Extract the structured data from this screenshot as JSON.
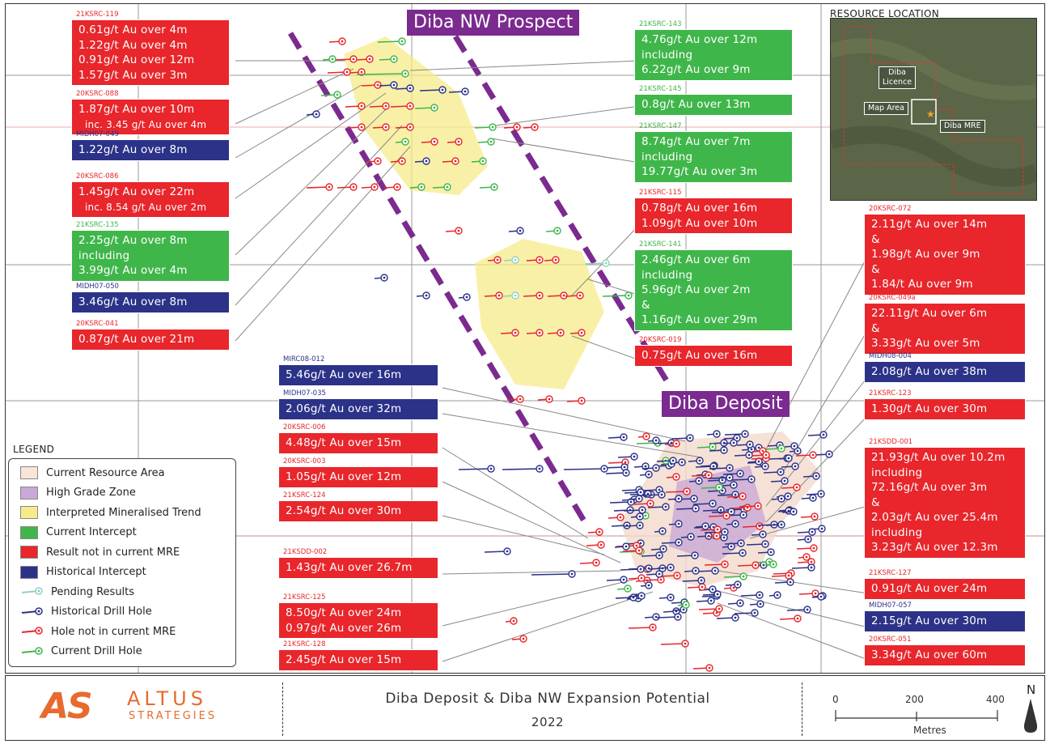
{
  "titles": {
    "diba_nw": "Diba NW Prospect",
    "diba_deposit": "Diba Deposit"
  },
  "inset": {
    "title": "RESOURCE LOCATION",
    "label_licence_1": "Diba",
    "label_licence_2": "Licence",
    "label_map_area": "Map Area",
    "label_mre": "Diba MRE"
  },
  "left_callouts": [
    {
      "id": "21KSRC-119",
      "color": "red",
      "lines": [
        "0.61g/t Au over 4m",
        "1.22g/t Au over 4m",
        "0.91g/t Au over 12m",
        "1.57g/t Au over 3m"
      ]
    },
    {
      "id": "20KSRC-088",
      "color": "red",
      "lines": [
        "1.87g/t Au over 10m",
        "inc. 3.45 g/t Au over 4m"
      ]
    },
    {
      "id": "MIDH07-049",
      "color": "blue",
      "lines": [
        "1.22g/t Au over 8m"
      ]
    },
    {
      "id": "20KSRC-086",
      "color": "red",
      "lines": [
        "1.45g/t Au over 22m",
        "inc. 8.54 g/t Au over 2m"
      ]
    },
    {
      "id": "21KSRC-135",
      "color": "green",
      "lines": [
        "2.25g/t Au over 8m",
        "including",
        "3.99g/t Au over 4m"
      ]
    },
    {
      "id": "MIDH07-050",
      "color": "blue",
      "lines": [
        "3.46g/t Au over 8m"
      ]
    },
    {
      "id": "20KSRC-041",
      "color": "red",
      "lines": [
        "0.87g/t Au over 21m"
      ]
    }
  ],
  "mid_callouts": [
    {
      "id": "MIRC08-012",
      "color": "blue",
      "lines": [
        "5.46g/t Au over 16m"
      ]
    },
    {
      "id": "MIDH07-035",
      "color": "blue",
      "lines": [
        "2.06g/t Au over 32m"
      ]
    },
    {
      "id": "20KSRC-006",
      "color": "red",
      "lines": [
        "4.48g/t Au over 15m"
      ]
    },
    {
      "id": "20KSRC-003",
      "color": "red",
      "lines": [
        "1.05g/t Au over 12m"
      ]
    },
    {
      "id": "21KSRC-124",
      "color": "red",
      "lines": [
        "2.54g/t Au over 30m"
      ]
    },
    {
      "id": "21KSDD-002",
      "color": "red",
      "lines": [
        "1.43g/t Au over 26.7m"
      ]
    },
    {
      "id": "21KSRC-125",
      "color": "red",
      "lines": [
        "8.50g/t Au over 24m",
        "0.97g/t Au over 26m"
      ]
    },
    {
      "id": "21KSRC-128",
      "color": "red",
      "lines": [
        "2.45g/t Au over 15m"
      ]
    }
  ],
  "center_callouts": [
    {
      "id": "21KSRC-143",
      "color": "green",
      "lines": [
        "4.76g/t Au over 12m",
        "including",
        "6.22g/t Au over 9m"
      ]
    },
    {
      "id": "21KSRC-145",
      "color": "green",
      "lines": [
        "0.8g/t Au over 13m"
      ]
    },
    {
      "id": "21KSRC-147",
      "color": "green",
      "lines": [
        "8.74g/t Au over 7m",
        "including",
        "19.77g/t Au over 3m"
      ]
    },
    {
      "id": "21KSRC-115",
      "color": "red",
      "lines": [
        "0.78g/t Au over 16m",
        "1.09g/t Au over 10m"
      ]
    },
    {
      "id": "21KSRC-141",
      "color": "green",
      "lines": [
        "2.46g/t Au over 6m",
        "including",
        "5.96g/t Au over 2m",
        "&",
        "1.16g/t Au over 29m"
      ]
    },
    {
      "id": "20KSRC-019",
      "color": "red",
      "lines": [
        "0.75g/t Au over 16m"
      ]
    }
  ],
  "right_callouts": [
    {
      "id": "20KSRC-072",
      "color": "red",
      "lines": [
        "2.11g/t Au over 14m",
        "&",
        "1.98g/t Au over 9m",
        "&",
        "1.84/t Au over 9m"
      ]
    },
    {
      "id": "20KSRC-049a",
      "color": "red",
      "lines": [
        "22.11g/t Au over 6m",
        "&",
        "3.33g/t Au over 5m"
      ]
    },
    {
      "id": "MIDH08-004",
      "color": "blue",
      "lines": [
        "2.08g/t Au over 38m"
      ]
    },
    {
      "id": "21KSRC-123",
      "color": "red",
      "lines": [
        "1.30g/t Au over 30m"
      ]
    },
    {
      "id": "21KSDD-001",
      "color": "red",
      "lines": [
        "21.93g/t Au over 10.2m",
        "including",
        "72.16g/t Au over 3m",
        "&",
        "2.03g/t Au over 25.4m",
        "including",
        "3.23g/t Au over 12.3m"
      ]
    },
    {
      "id": "21KSRC-127",
      "color": "red",
      "lines": [
        "0.91g/t Au over 24m"
      ]
    },
    {
      "id": "MIDH07-057",
      "color": "blue",
      "lines": [
        "2.15g/t Au over 30m"
      ]
    },
    {
      "id": "20KSRC-051",
      "color": "red",
      "lines": [
        "3.34g/t Au over 60m"
      ]
    }
  ],
  "legend": {
    "title": "LEGEND",
    "items": [
      {
        "label": "Current Resource Area",
        "kind": "swatch",
        "color": "#f9e4d8"
      },
      {
        "label": "High Grade Zone",
        "kind": "swatch",
        "color": "#c9a9d6"
      },
      {
        "label": "Interpreted Mineralised Trend",
        "kind": "swatch",
        "color": "#f6eb8a"
      },
      {
        "label": "Current Intercept",
        "kind": "swatch",
        "color": "#3fb64a"
      },
      {
        "label": "Result not in current MRE",
        "kind": "swatch",
        "color": "#e8262b"
      },
      {
        "label": "Historical Intercept",
        "kind": "swatch",
        "color": "#2b3288"
      },
      {
        "label": "Pending Results",
        "kind": "hole",
        "color": "#8fd3c3"
      },
      {
        "label": "Historical Drill Hole",
        "kind": "hole",
        "color": "#2b3288"
      },
      {
        "label": "Hole not in current MRE",
        "kind": "hole",
        "color": "#e8262b"
      },
      {
        "label": "Current Drill Hole",
        "kind": "hole",
        "color": "#3fb64a"
      }
    ]
  },
  "footer": {
    "logo_main": "AS",
    "logo_word": "ALTUS",
    "logo_sub": "STRATEGIES",
    "title": "Diba Deposit & Diba NW Expansion Potential",
    "year": "2022",
    "scale_labels": [
      "0",
      "200",
      "400"
    ],
    "scale_unit": "Metres",
    "north": "N"
  },
  "colors": {
    "red": "#e8262b",
    "green": "#3fb64a",
    "blue": "#2b3288",
    "purple": "#7b2a8f",
    "trend": "#f6eb8a"
  }
}
